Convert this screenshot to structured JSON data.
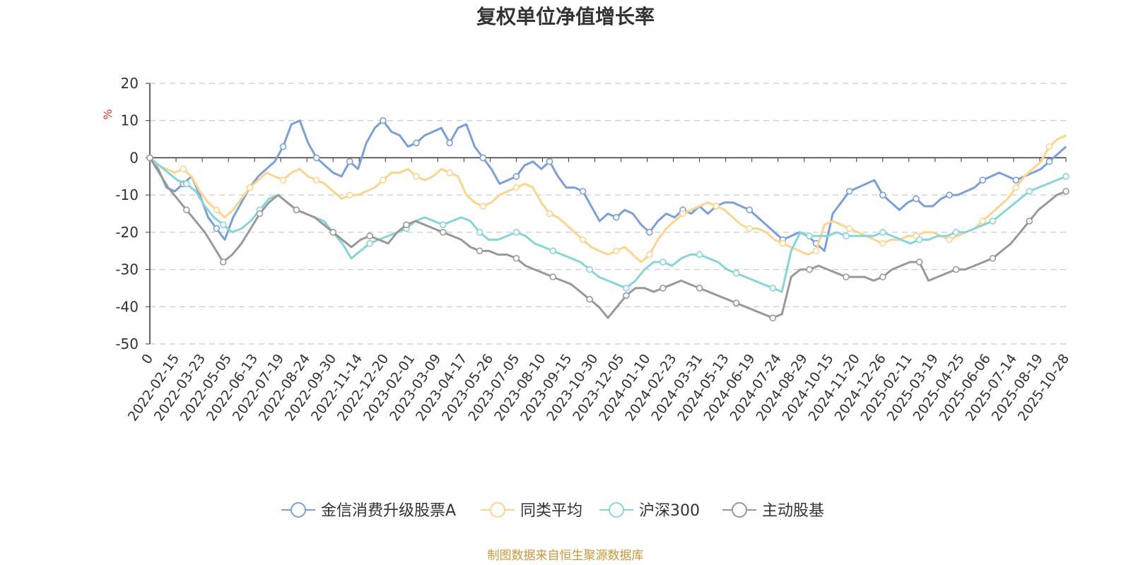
{
  "chart_data": {
    "type": "line",
    "title": "复权单位净值增长率",
    "ylabel": "%",
    "ylim": [
      -50,
      20
    ],
    "y_ticks": [
      "20",
      "10",
      "0",
      "-10",
      "-20",
      "-30",
      "-40",
      "-50"
    ],
    "y_tick_values": [
      20,
      10,
      0,
      -10,
      -20,
      -30,
      -40,
      -50
    ],
    "x_tick_labels": [
      "0",
      "2022-02-15",
      "2022-03-23",
      "2022-05-05",
      "2022-06-13",
      "2022-07-19",
      "2022-08-24",
      "2022-09-30",
      "2022-11-14",
      "2022-12-20",
      "2023-02-01",
      "2023-03-09",
      "2023-04-17",
      "2023-05-26",
      "2023-07-05",
      "2023-08-10",
      "2023-09-15",
      "2023-10-30",
      "2023-12-05",
      "2024-01-10",
      "2024-02-23",
      "2024-03-31",
      "2024-05-13",
      "2024-06-19",
      "2024-07-24",
      "2024-08-29",
      "2024-10-15",
      "2024-11-20",
      "2024-12-26",
      "2025-02-11",
      "2025-03-19",
      "2025-04-25",
      "2025-06-06",
      "2025-07-14",
      "2025-08-19",
      "2025-10-28"
    ],
    "grid": "horizontal-dashed",
    "legend_position": "bottom",
    "series": [
      {
        "name": "金信消费升级股票A",
        "color": "#7b9fd6",
        "values": [
          0,
          -3,
          -8,
          -9,
          -7,
          -5,
          -10,
          -16,
          -19,
          -22,
          -16,
          -12,
          -8,
          -5,
          -3,
          -1,
          3,
          9,
          10,
          4,
          0,
          -2,
          -4,
          -5,
          -1,
          -3,
          4,
          8,
          10,
          7,
          6,
          3,
          4,
          6,
          7,
          8,
          4,
          8,
          9,
          3,
          0,
          -3,
          -7,
          -6,
          -5,
          -2,
          -1,
          -3,
          -1,
          -5,
          -8,
          -8,
          -9,
          -13,
          -17,
          -15,
          -16,
          -14,
          -15,
          -18,
          -20,
          -17,
          -15,
          -16,
          -14,
          -15,
          -13,
          -15,
          -13,
          -12,
          -12,
          -13,
          -14,
          -16,
          -18,
          -20,
          -22,
          -21,
          -20,
          -21,
          -23,
          -25,
          -15,
          -12,
          -9,
          -8,
          -7,
          -6,
          -10,
          -12,
          -14,
          -12,
          -11,
          -13,
          -13,
          -11,
          -10,
          -10,
          -9,
          -8,
          -6,
          -5,
          -4,
          -5,
          -6,
          -5,
          -4,
          -3,
          -1,
          1,
          3
        ]
      },
      {
        "name": "同类平均",
        "color": "#fcd48e",
        "values": [
          0,
          -2,
          -3,
          -4,
          -3,
          -5,
          -9,
          -12,
          -14,
          -16,
          -14,
          -11,
          -8,
          -6,
          -4,
          -5,
          -6,
          -4,
          -3,
          -5,
          -6,
          -7,
          -9,
          -11,
          -10,
          -10,
          -9,
          -8,
          -6,
          -4,
          -4,
          -3,
          -5,
          -6,
          -5,
          -3,
          -4,
          -5,
          -10,
          -12,
          -13,
          -12,
          -10,
          -9,
          -8,
          -7,
          -8,
          -12,
          -15,
          -16,
          -18,
          -20,
          -22,
          -24,
          -25,
          -26,
          -25,
          -24,
          -26,
          -28,
          -26,
          -22,
          -19,
          -17,
          -15,
          -14,
          -13,
          -12,
          -13,
          -14,
          -16,
          -18,
          -19,
          -19,
          -20,
          -22,
          -23,
          -24,
          -25,
          -26,
          -25,
          -18,
          -17,
          -18,
          -19,
          -20,
          -21,
          -22,
          -23,
          -22,
          -22,
          -21,
          -21,
          -20,
          -20,
          -21,
          -22,
          -21,
          -20,
          -19,
          -17,
          -15,
          -13,
          -11,
          -8,
          -5,
          -3,
          -1,
          3,
          5,
          6
        ]
      },
      {
        "name": "沪深300",
        "color": "#87d5d8",
        "values": [
          0,
          -2,
          -4,
          -6,
          -7,
          -9,
          -13,
          -16,
          -18,
          -20,
          -19,
          -17,
          -14,
          -11,
          -10,
          -12,
          -14,
          -15,
          -16,
          -17,
          -20,
          -23,
          -27,
          -25,
          -23,
          -22,
          -21,
          -20,
          -19,
          -17,
          -16,
          -17,
          -18,
          -17,
          -16,
          -17,
          -20,
          -22,
          -22,
          -21,
          -20,
          -21,
          -23,
          -24,
          -25,
          -26,
          -27,
          -28,
          -30,
          -32,
          -33,
          -34,
          -35,
          -33,
          -30,
          -28,
          -28,
          -29,
          -27,
          -26,
          -26,
          -27,
          -28,
          -30,
          -31,
          -32,
          -33,
          -34,
          -35,
          -36,
          -25,
          -20,
          -21,
          -21,
          -21,
          -20,
          -21,
          -21,
          -21,
          -21,
          -20,
          -21,
          -22,
          -23,
          -22,
          -22,
          -21,
          -21,
          -20,
          -20,
          -19,
          -18,
          -17,
          -15,
          -13,
          -11,
          -9,
          -8,
          -7,
          -6,
          -5
        ]
      },
      {
        "name": "主动股基",
        "color": "#999999",
        "values": [
          0,
          -4,
          -8,
          -11,
          -14,
          -17,
          -20,
          -24,
          -28,
          -26,
          -23,
          -19,
          -15,
          -12,
          -10,
          -12,
          -14,
          -15,
          -16,
          -18,
          -20,
          -22,
          -24,
          -22,
          -21,
          -22,
          -23,
          -20,
          -18,
          -17,
          -18,
          -19,
          -20,
          -21,
          -22,
          -24,
          -25,
          -25,
          -26,
          -26,
          -27,
          -29,
          -30,
          -31,
          -32,
          -33,
          -34,
          -36,
          -38,
          -40,
          -43,
          -40,
          -37,
          -35,
          -35,
          -36,
          -35,
          -34,
          -33,
          -34,
          -35,
          -36,
          -37,
          -38,
          -39,
          -40,
          -41,
          -42,
          -43,
          -42,
          -32,
          -30,
          -30,
          -29,
          -30,
          -31,
          -32,
          -32,
          -32,
          -33,
          -32,
          -30,
          -29,
          -28,
          -28,
          -33,
          -32,
          -31,
          -30,
          -30,
          -29,
          -28,
          -27,
          -25,
          -23,
          -20,
          -17,
          -14,
          -12,
          -10,
          -9
        ]
      }
    ],
    "source_note": "制图数据来自恒生聚源数据库"
  }
}
